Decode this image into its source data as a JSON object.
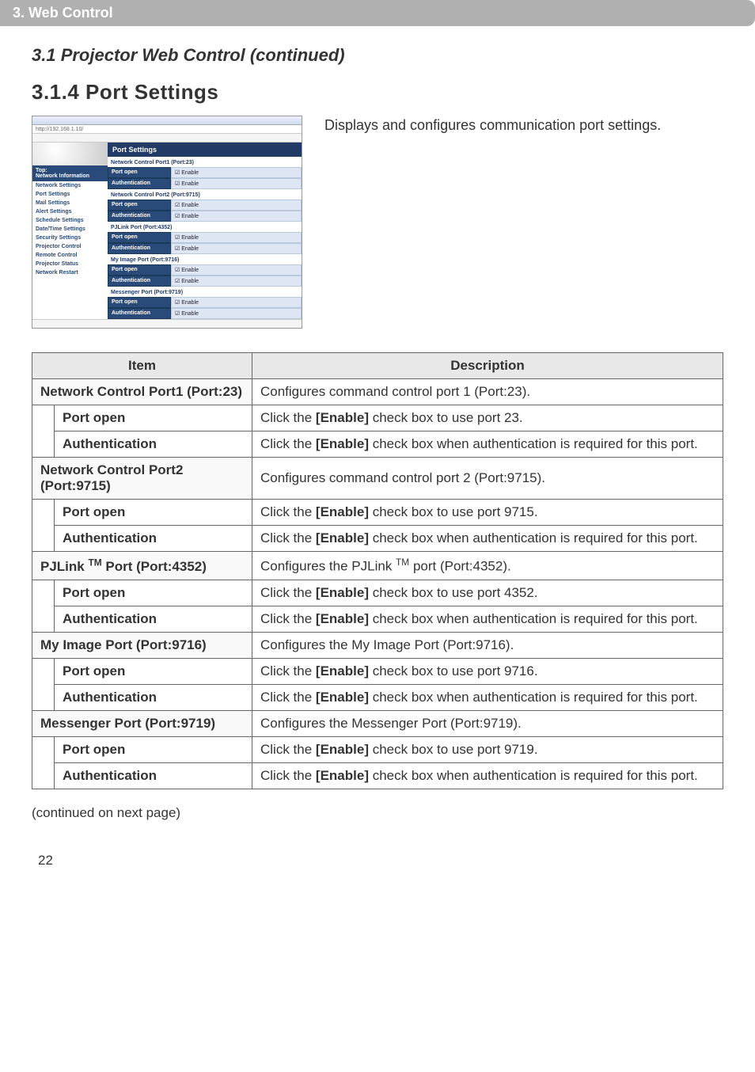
{
  "section_bar": "3. Web Control",
  "heading_continued": "3.1 Projector Web Control (continued)",
  "heading_sub": "3.1.4 Port Settings",
  "description": "Displays and configures communication port settings.",
  "continued_note": "(continued on next page)",
  "page_number": "22",
  "mock": {
    "url": "http://192.168.1.10/",
    "title": "Port Settings",
    "side_block1": "Top:",
    "side_block2": "Network Information",
    "side_items": [
      "Network Settings",
      "Port Settings",
      "Mail Settings",
      "Alert Settings",
      "Schedule Settings",
      "Date/Time Settings",
      "Security Settings",
      "Projector Control",
      "Remote Control",
      "Projector Status",
      "Network Restart"
    ],
    "groups": [
      {
        "name": "Network Control Port1 (Port:23)",
        "rows": [
          [
            "Port open",
            "Enable"
          ],
          [
            "Authentication",
            "Enable"
          ]
        ]
      },
      {
        "name": "Network Control Port2 (Port:9715)",
        "rows": [
          [
            "Port open",
            "Enable"
          ],
          [
            "Authentication",
            "Enable"
          ]
        ]
      },
      {
        "name": "PJLink Port (Port:4352)",
        "rows": [
          [
            "Port open",
            "Enable"
          ],
          [
            "Authentication",
            "Enable"
          ]
        ]
      },
      {
        "name": "My Image Port (Port:9716)",
        "rows": [
          [
            "Port open",
            "Enable"
          ],
          [
            "Authentication",
            "Enable"
          ]
        ]
      },
      {
        "name": "Messenger Port (Port:9719)",
        "rows": [
          [
            "Port open",
            "Enable"
          ],
          [
            "Authentication",
            "Enable"
          ]
        ]
      }
    ]
  },
  "table": {
    "headers": {
      "item": "Item",
      "description": "Description"
    },
    "groups": [
      {
        "title": "Network Control Port1 (Port:23)",
        "desc": "Configures command control port 1 (Port:23).",
        "rows": [
          {
            "label": "Port open",
            "desc": "Click the [Enable] check box to use port 23."
          },
          {
            "label": "Authentication",
            "desc": "Click the [Enable] check box when authentication is required for this port."
          }
        ]
      },
      {
        "title": "Network Control Port2 (Port:9715)",
        "desc": "Configures command control port 2 (Port:9715).",
        "rows": [
          {
            "label": "Port open",
            "desc": "Click the [Enable] check box to use port 9715."
          },
          {
            "label": "Authentication",
            "desc": "Click the [Enable] check box when authentication is required for this port."
          }
        ]
      },
      {
        "title": "PJLink ™ Port (Port:4352)",
        "desc": "Configures the PJLink ™ port (Port:4352).",
        "rows": [
          {
            "label": "Port open",
            "desc": "Click the [Enable] check box to use port 4352."
          },
          {
            "label": "Authentication",
            "desc": "Click the [Enable] check box when authentication is required for this port."
          }
        ]
      },
      {
        "title": "My Image Port (Port:9716)",
        "desc": "Configures the My Image Port (Port:9716).",
        "rows": [
          {
            "label": "Port open",
            "desc": "Click the [Enable] check box to use port 9716."
          },
          {
            "label": "Authentication",
            "desc": "Click the [Enable] check box when authentication is required for this port."
          }
        ]
      },
      {
        "title": "Messenger Port (Port:9719)",
        "desc": "Configures the Messenger Port (Port:9719).",
        "rows": [
          {
            "label": "Port open",
            "desc": "Click the [Enable] check box to use port 9719."
          },
          {
            "label": "Authentication",
            "desc": "Click the [Enable] check box when authentication is required for this port."
          }
        ]
      }
    ]
  }
}
